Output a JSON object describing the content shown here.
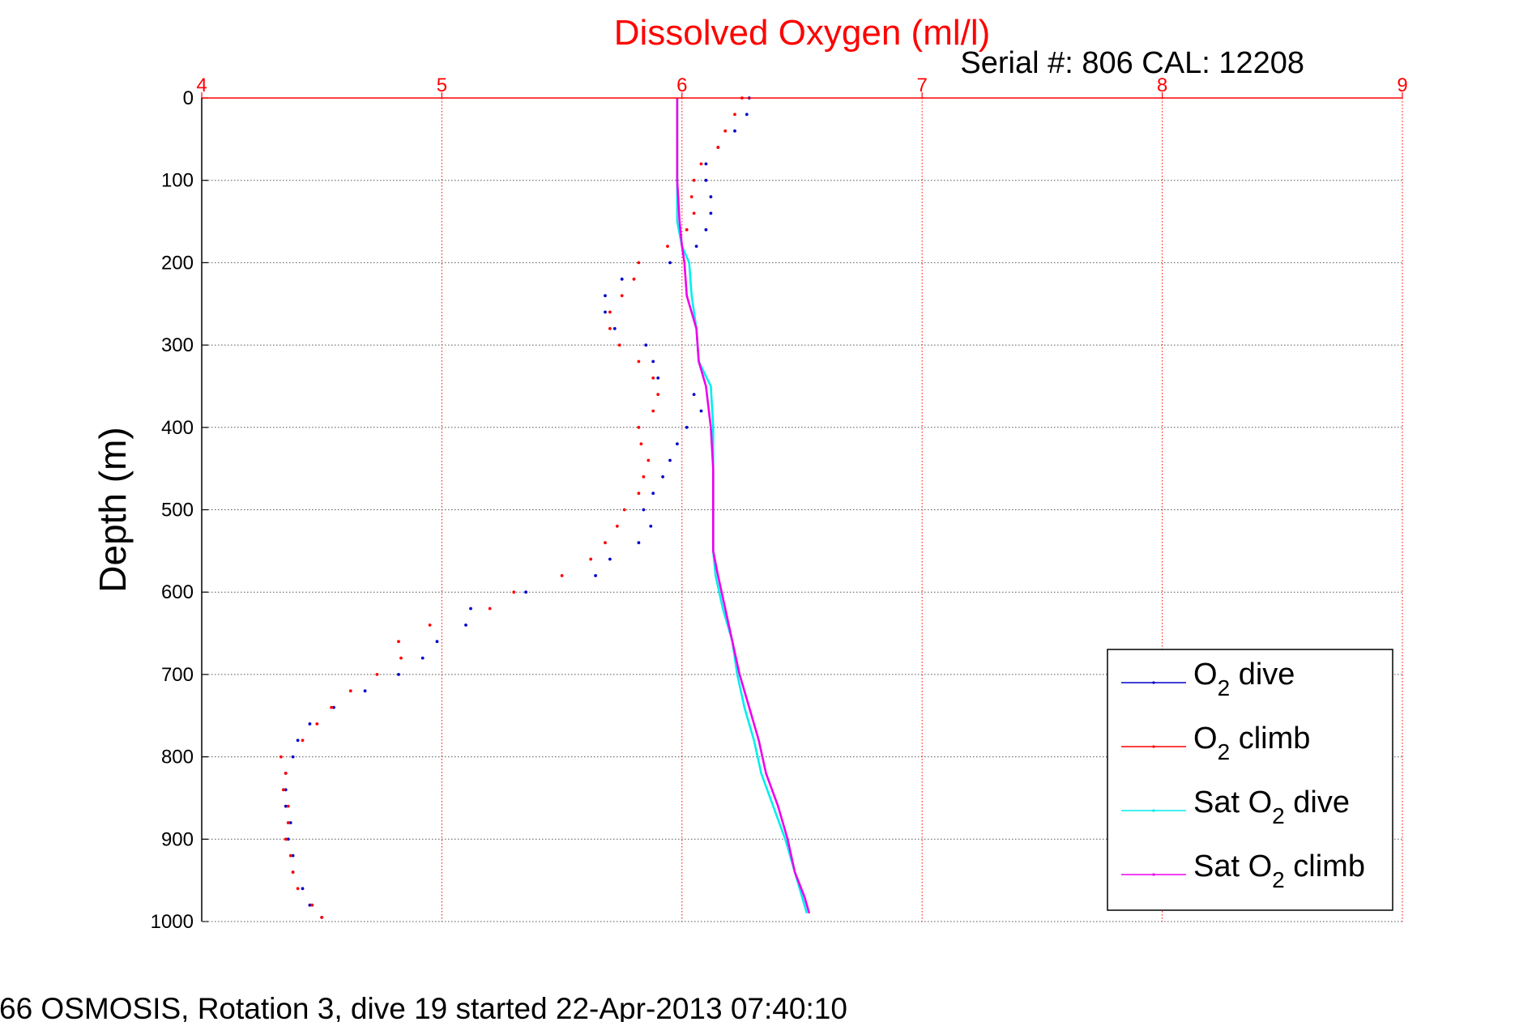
{
  "chart_data": {
    "type": "scatter",
    "title": "Dissolved Oxygen (ml/l)",
    "subtitle": "Serial #: 806  CAL: 12208",
    "footer": "66 OSMOSIS, Rotation 3, dive 19 started 22-Apr-2013 07:40:10",
    "xlabel": "",
    "ylabel": "Depth (m)",
    "xlim": [
      4,
      9
    ],
    "ylim": [
      0,
      1000
    ],
    "y_reversed": true,
    "x_axis_position": "top",
    "x_ticks": [
      "4",
      "5",
      "6",
      "7",
      "8",
      "9"
    ],
    "y_ticks": [
      "0",
      "100",
      "200",
      "300",
      "400",
      "500",
      "600",
      "700",
      "800",
      "900",
      "1000"
    ],
    "grid": true,
    "legend": {
      "placement": "bottom-right",
      "entries": [
        {
          "label": "O",
          "sub": "2",
          "suffix": " dive"
        },
        {
          "label": "O",
          "sub": "2",
          "suffix": " climb"
        },
        {
          "label": "Sat O",
          "sub": "2",
          "suffix": " dive"
        },
        {
          "label": "Sat O",
          "sub": "2",
          "suffix": " climb"
        }
      ]
    },
    "series": [
      {
        "style": "dots",
        "color": "#0000cc",
        "points": [
          [
            6.28,
            0
          ],
          [
            6.27,
            20
          ],
          [
            6.22,
            40
          ],
          [
            6.15,
            60
          ],
          [
            6.1,
            80
          ],
          [
            6.1,
            100
          ],
          [
            6.12,
            120
          ],
          [
            6.12,
            140
          ],
          [
            6.1,
            160
          ],
          [
            6.06,
            180
          ],
          [
            5.95,
            200
          ],
          [
            5.75,
            220
          ],
          [
            5.68,
            240
          ],
          [
            5.68,
            260
          ],
          [
            5.72,
            280
          ],
          [
            5.85,
            300
          ],
          [
            5.88,
            320
          ],
          [
            5.9,
            340
          ],
          [
            6.05,
            360
          ],
          [
            6.08,
            380
          ],
          [
            6.02,
            400
          ],
          [
            5.98,
            420
          ],
          [
            5.95,
            440
          ],
          [
            5.92,
            460
          ],
          [
            5.88,
            480
          ],
          [
            5.84,
            500
          ],
          [
            5.87,
            520
          ],
          [
            5.82,
            540
          ],
          [
            5.7,
            560
          ],
          [
            5.64,
            580
          ],
          [
            5.35,
            600
          ],
          [
            5.12,
            620
          ],
          [
            5.1,
            640
          ],
          [
            4.98,
            660
          ],
          [
            4.92,
            680
          ],
          [
            4.82,
            700
          ],
          [
            4.68,
            720
          ],
          [
            4.55,
            740
          ],
          [
            4.45,
            760
          ],
          [
            4.4,
            780
          ],
          [
            4.38,
            800
          ],
          [
            4.35,
            820
          ],
          [
            4.35,
            840
          ],
          [
            4.35,
            860
          ],
          [
            4.37,
            880
          ],
          [
            4.36,
            900
          ],
          [
            4.38,
            920
          ],
          [
            4.38,
            940
          ],
          [
            4.42,
            960
          ],
          [
            4.45,
            980
          ],
          [
            4.5,
            995
          ]
        ]
      },
      {
        "style": "dots",
        "color": "#ff0000",
        "points": [
          [
            6.25,
            0
          ],
          [
            6.22,
            20
          ],
          [
            6.18,
            40
          ],
          [
            6.15,
            60
          ],
          [
            6.08,
            80
          ],
          [
            6.05,
            100
          ],
          [
            6.04,
            120
          ],
          [
            6.05,
            140
          ],
          [
            6.02,
            160
          ],
          [
            5.94,
            180
          ],
          [
            5.82,
            200
          ],
          [
            5.8,
            220
          ],
          [
            5.75,
            240
          ],
          [
            5.7,
            260
          ],
          [
            5.7,
            280
          ],
          [
            5.74,
            300
          ],
          [
            5.82,
            320
          ],
          [
            5.88,
            340
          ],
          [
            5.9,
            360
          ],
          [
            5.88,
            380
          ],
          [
            5.82,
            400
          ],
          [
            5.83,
            420
          ],
          [
            5.86,
            440
          ],
          [
            5.84,
            460
          ],
          [
            5.82,
            480
          ],
          [
            5.76,
            500
          ],
          [
            5.73,
            520
          ],
          [
            5.68,
            540
          ],
          [
            5.62,
            560
          ],
          [
            5.5,
            580
          ],
          [
            5.3,
            600
          ],
          [
            5.2,
            620
          ],
          [
            4.95,
            640
          ],
          [
            4.82,
            660
          ],
          [
            4.83,
            680
          ],
          [
            4.73,
            700
          ],
          [
            4.62,
            720
          ],
          [
            4.54,
            740
          ],
          [
            4.48,
            760
          ],
          [
            4.42,
            780
          ],
          [
            4.33,
            800
          ],
          [
            4.35,
            820
          ],
          [
            4.34,
            840
          ],
          [
            4.36,
            860
          ],
          [
            4.36,
            880
          ],
          [
            4.35,
            900
          ],
          [
            4.37,
            920
          ],
          [
            4.38,
            940
          ],
          [
            4.4,
            960
          ],
          [
            4.46,
            980
          ],
          [
            4.5,
            995
          ]
        ]
      },
      {
        "style": "line",
        "color": "#00eeee",
        "points": [
          [
            5.98,
            0
          ],
          [
            5.98,
            50
          ],
          [
            5.98,
            100
          ],
          [
            5.98,
            150
          ],
          [
            6.0,
            180
          ],
          [
            6.03,
            200
          ],
          [
            6.04,
            240
          ],
          [
            6.06,
            280
          ],
          [
            6.07,
            320
          ],
          [
            6.12,
            350
          ],
          [
            6.13,
            400
          ],
          [
            6.13,
            450
          ],
          [
            6.13,
            500
          ],
          [
            6.13,
            550
          ],
          [
            6.14,
            580
          ],
          [
            6.17,
            620
          ],
          [
            6.21,
            660
          ],
          [
            6.23,
            700
          ],
          [
            6.26,
            740
          ],
          [
            6.3,
            780
          ],
          [
            6.33,
            820
          ],
          [
            6.38,
            860
          ],
          [
            6.43,
            900
          ],
          [
            6.47,
            940
          ],
          [
            6.5,
            970
          ],
          [
            6.52,
            990
          ]
        ]
      },
      {
        "style": "line",
        "color": "#ee00ee",
        "points": [
          [
            5.98,
            0
          ],
          [
            5.98,
            50
          ],
          [
            5.98,
            100
          ],
          [
            5.99,
            150
          ],
          [
            6.0,
            180
          ],
          [
            6.01,
            200
          ],
          [
            6.02,
            240
          ],
          [
            6.06,
            280
          ],
          [
            6.07,
            320
          ],
          [
            6.1,
            350
          ],
          [
            6.12,
            400
          ],
          [
            6.13,
            450
          ],
          [
            6.13,
            500
          ],
          [
            6.13,
            550
          ],
          [
            6.15,
            580
          ],
          [
            6.18,
            620
          ],
          [
            6.21,
            660
          ],
          [
            6.24,
            700
          ],
          [
            6.28,
            740
          ],
          [
            6.32,
            780
          ],
          [
            6.35,
            820
          ],
          [
            6.4,
            860
          ],
          [
            6.44,
            900
          ],
          [
            6.47,
            940
          ],
          [
            6.51,
            970
          ],
          [
            6.53,
            990
          ]
        ]
      }
    ]
  }
}
